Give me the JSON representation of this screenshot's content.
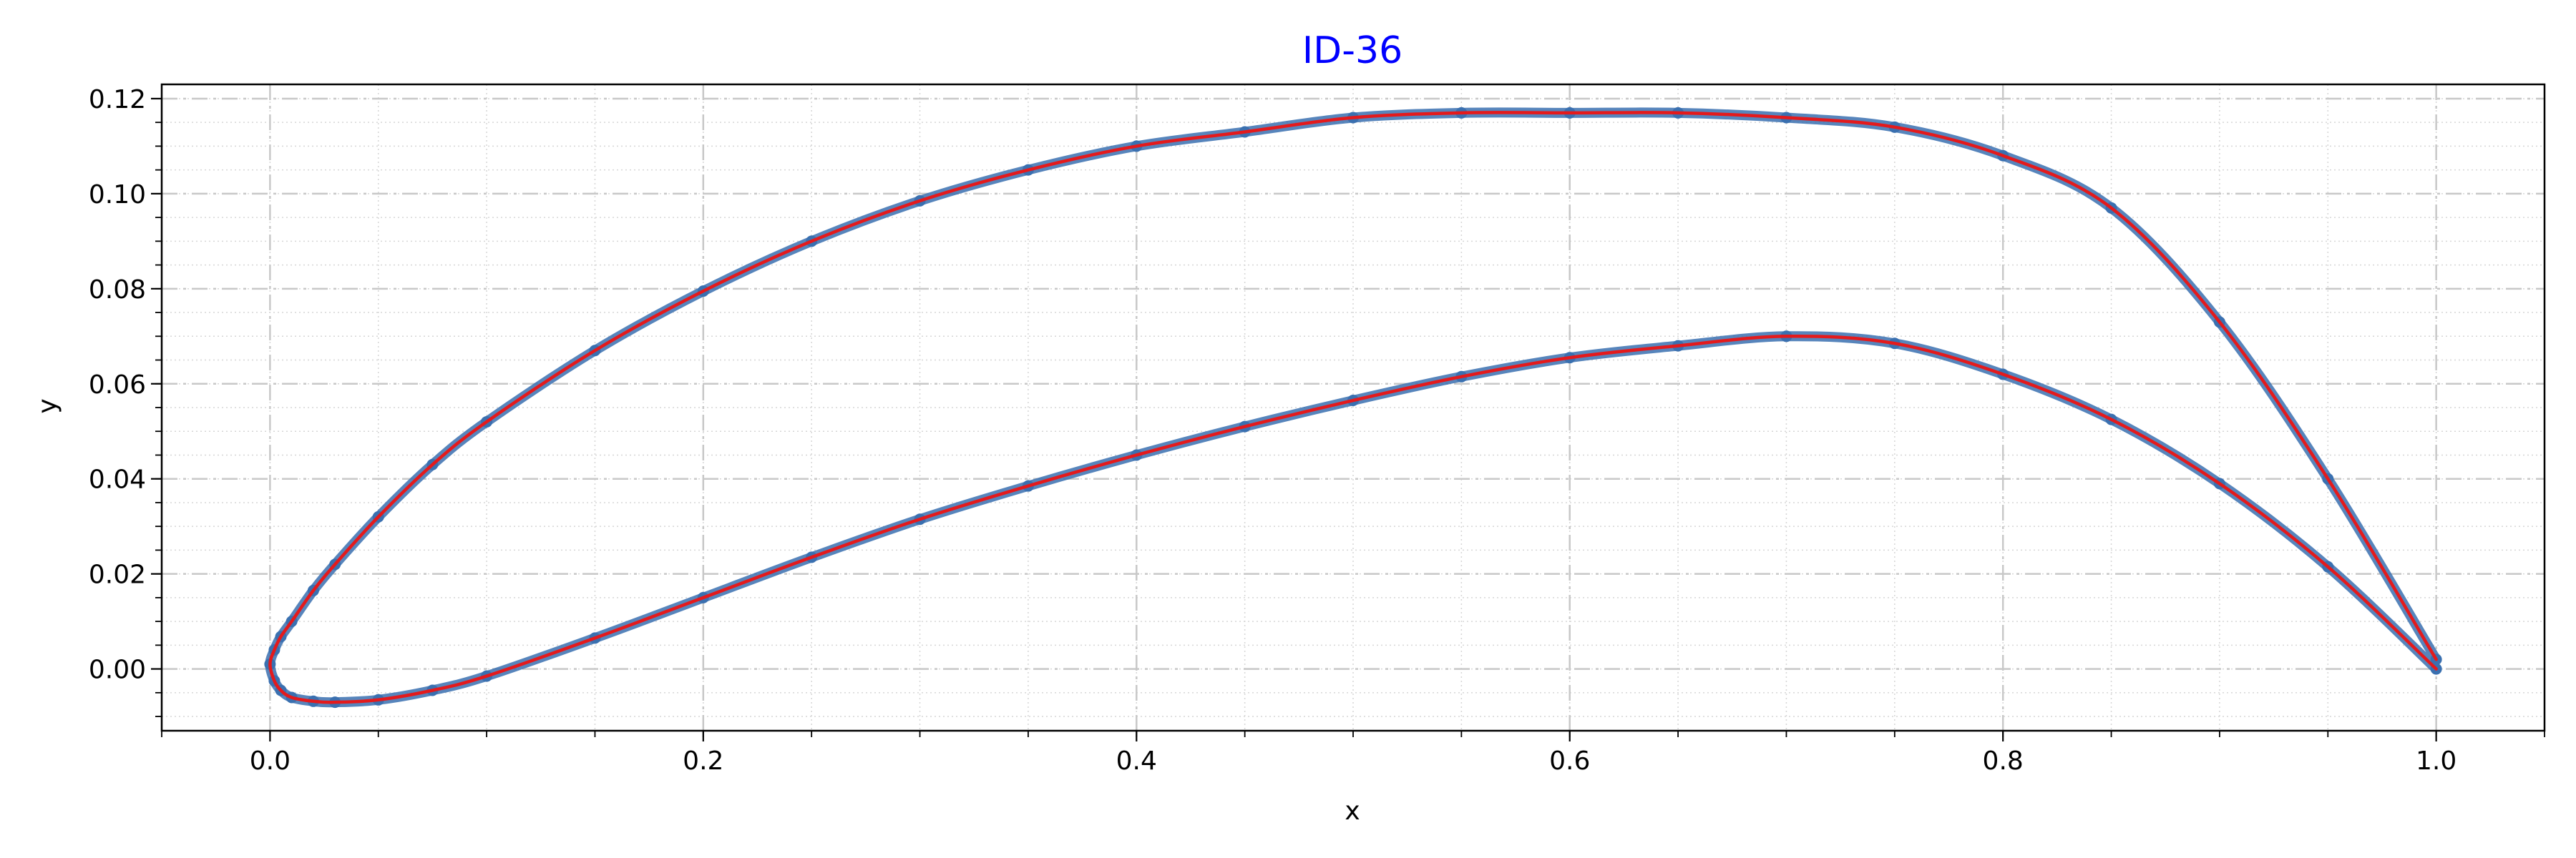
{
  "chart_data": {
    "type": "line",
    "title": "ID-36",
    "xlabel": "x",
    "ylabel": "y",
    "xlim": [
      -0.05,
      1.05
    ],
    "ylim": [
      -0.013,
      0.123
    ],
    "x_ticks": [
      0.0,
      0.2,
      0.4,
      0.6,
      0.8,
      1.0
    ],
    "y_ticks": [
      0.0,
      0.02,
      0.04,
      0.06,
      0.08,
      0.1,
      0.12
    ],
    "x_minor_step": 0.05,
    "y_minor_step": 0.005,
    "grid": true,
    "legend": "none",
    "colors": {
      "title": "#0000ff",
      "line": "#e41a1c",
      "marker": "#3a70b0",
      "grid_major": "#c8c8c8",
      "grid_minor": "#d6d6d6"
    },
    "series": [
      {
        "marker": "circle",
        "x": [
          1.0,
          0.95,
          0.9,
          0.85,
          0.8,
          0.75,
          0.7,
          0.65,
          0.6,
          0.55,
          0.5,
          0.45,
          0.4,
          0.35,
          0.3,
          0.25,
          0.2,
          0.15,
          0.1,
          0.075,
          0.05,
          0.03,
          0.02,
          0.01,
          0.005,
          0.002,
          0.0,
          0.002,
          0.005,
          0.01,
          0.02,
          0.03,
          0.05,
          0.075,
          0.1,
          0.15,
          0.2,
          0.25,
          0.3,
          0.35,
          0.4,
          0.45,
          0.5,
          0.55,
          0.6,
          0.65,
          0.7,
          0.75,
          0.8,
          0.85,
          0.9,
          0.95,
          1.0
        ],
        "y": [
          0.002,
          0.04,
          0.073,
          0.097,
          0.108,
          0.114,
          0.116,
          0.117,
          0.117,
          0.117,
          0.116,
          0.113,
          0.11,
          0.105,
          0.0985,
          0.09,
          0.0795,
          0.067,
          0.052,
          0.043,
          0.032,
          0.022,
          0.0165,
          0.01,
          0.0068,
          0.004,
          0.001,
          -0.0025,
          -0.0045,
          -0.006,
          -0.0068,
          -0.007,
          -0.0065,
          -0.0045,
          -0.0015,
          0.0065,
          0.015,
          0.0235,
          0.0315,
          0.0385,
          0.045,
          0.051,
          0.0565,
          0.0615,
          0.0655,
          0.068,
          0.07,
          0.0685,
          0.062,
          0.0525,
          0.039,
          0.0215,
          0.0
        ]
      }
    ]
  }
}
